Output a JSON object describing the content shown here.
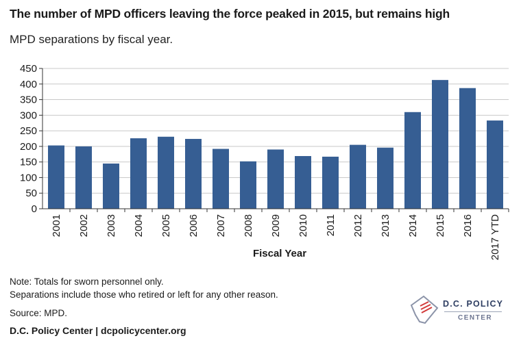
{
  "title": "The number of MPD officers leaving the force peaked in 2015, but remains high",
  "subtitle": "MPD separations by fiscal year.",
  "notes": {
    "line1": "Note: Totals for sworn personnel only.",
    "line2": "Separations include those who retired or left for any other reason."
  },
  "source": "Source: MPD.",
  "credit": "D.C. Policy Center | dcpolicycenter.org",
  "logo": {
    "line1": "D.C. POLICY",
    "line2": "CENTER"
  },
  "colors": {
    "bar": "#365e93",
    "grid": "#c8c8c8",
    "axis": "#333333"
  },
  "chart_data": {
    "type": "bar",
    "title": "",
    "xlabel": "Fiscal Year",
    "ylabel": "",
    "ylim": [
      0,
      450
    ],
    "yticks": [
      0,
      50,
      100,
      150,
      200,
      250,
      300,
      350,
      400,
      450
    ],
    "grid": true,
    "legend": "none",
    "categories": [
      "2001",
      "2002",
      "2003",
      "2004",
      "2005",
      "2006",
      "2007",
      "2008",
      "2009",
      "2010",
      "2011",
      "2012",
      "2013",
      "2014",
      "2015",
      "2016",
      "2017 YTD"
    ],
    "values": [
      203,
      200,
      145,
      226,
      231,
      224,
      192,
      152,
      190,
      169,
      167,
      205,
      196,
      310,
      413,
      387,
      283
    ]
  }
}
